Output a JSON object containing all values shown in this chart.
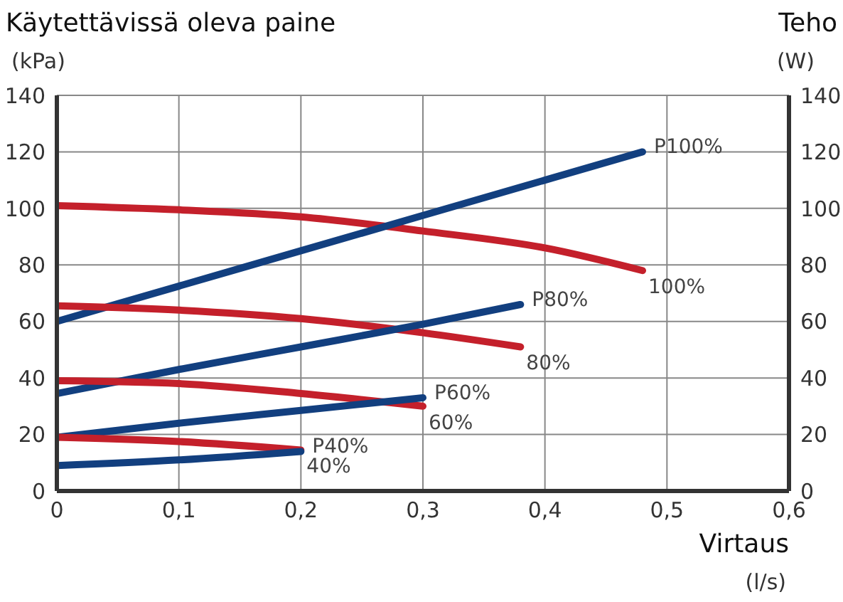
{
  "chart_data": {
    "type": "line",
    "ylabel": "Käytettävissä oleva paine\n(kPa)",
    "y2label": "Teho\n(W)",
    "xlabel": "Virtaus\n(l/s)",
    "xlim": [
      0,
      0.6
    ],
    "xticks": [
      0,
      {
        "value": 0.1,
        "label": "0,1"
      },
      {
        "value": 0.2,
        "label": "0,2"
      },
      {
        "value": 0.3,
        "label": "0,3"
      },
      {
        "value": 0.4,
        "label": "0,4"
      },
      {
        "value": 0.5,
        "label": "0,5"
      },
      {
        "value": 0.6,
        "label": "0,6"
      }
    ],
    "ylim": [
      0,
      140
    ],
    "yticks": [
      0,
      20,
      40,
      60,
      80,
      100,
      120,
      140
    ],
    "y2lim": [
      0,
      140
    ],
    "y2ticks": [
      0,
      20,
      40,
      60,
      80,
      100,
      120,
      140
    ],
    "grid": true,
    "legend": false,
    "marker": "none",
    "line_style": "solid",
    "series": [
      {
        "name": "100%",
        "color": "#c4202b",
        "x": [
          0,
          0.1,
          0.2,
          0.3,
          0.4,
          0.48
        ],
        "values": [
          101,
          99.5,
          97,
          92,
          86,
          78
        ]
      },
      {
        "name": "P100%",
        "color": "#123f7f",
        "axis": "y2",
        "x": [
          0,
          0.1,
          0.2,
          0.3,
          0.4,
          0.48
        ],
        "values": [
          60,
          72.5,
          85,
          97.5,
          110,
          120
        ]
      },
      {
        "name": "80%",
        "color": "#c4202b",
        "x": [
          0,
          0.1,
          0.2,
          0.3,
          0.38
        ],
        "values": [
          65.5,
          64,
          61,
          56,
          51
        ]
      },
      {
        "name": "P80%",
        "color": "#123f7f",
        "axis": "y2",
        "x": [
          0,
          0.1,
          0.2,
          0.3,
          0.38
        ],
        "values": [
          34.5,
          43,
          51,
          59,
          66
        ]
      },
      {
        "name": "60%",
        "color": "#c4202b",
        "x": [
          0,
          0.1,
          0.2,
          0.3
        ],
        "values": [
          39,
          38,
          34.5,
          30
        ]
      },
      {
        "name": "P60%",
        "color": "#123f7f",
        "axis": "y2",
        "x": [
          0,
          0.1,
          0.2,
          0.3
        ],
        "values": [
          19,
          24,
          28.5,
          33
        ]
      },
      {
        "name": "40%",
        "color": "#c4202b",
        "x": [
          0,
          0.1,
          0.2
        ],
        "values": [
          19,
          17.5,
          14.5
        ]
      },
      {
        "name": "P40%",
        "color": "#123f7f",
        "axis": "y2",
        "x": [
          0,
          0.1,
          0.2
        ],
        "values": [
          9,
          11,
          14
        ]
      }
    ]
  }
}
